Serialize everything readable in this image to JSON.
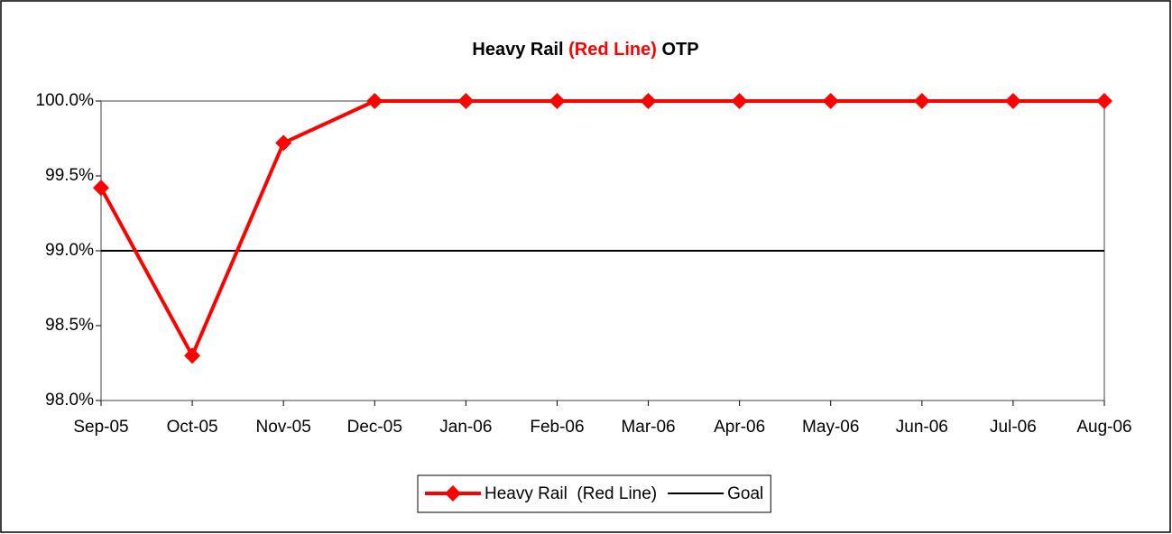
{
  "chart_data": {
    "type": "line",
    "title": [
      "Heavy Rail",
      "(Red Line)",
      "OTP"
    ],
    "title_colors": [
      "#000000",
      "#ff0000",
      "#000000"
    ],
    "categories": [
      "Sep-05",
      "Oct-05",
      "Nov-05",
      "Dec-05",
      "Jan-06",
      "Feb-06",
      "Mar-06",
      "Apr-06",
      "May-06",
      "Jun-06",
      "Jul-06",
      "Aug-06"
    ],
    "series": [
      {
        "name": "Heavy Rail  (Red Line)",
        "color": "#ff0000",
        "marker": "diamond",
        "values": [
          99.42,
          98.3,
          99.72,
          100,
          100,
          100,
          100,
          100,
          100,
          100,
          100,
          100
        ]
      },
      {
        "name": "Goal",
        "color": "#000000",
        "values": [
          99,
          99,
          99,
          99,
          99,
          99,
          99,
          99,
          99,
          99,
          99,
          99
        ]
      }
    ],
    "ylim": [
      98,
      100
    ],
    "yticks": [
      {
        "value": 98,
        "label": "98.0%"
      },
      {
        "value": 98.5,
        "label": "98.5%"
      },
      {
        "value": 99,
        "label": "99.0%"
      },
      {
        "value": 99.5,
        "label": "99.5%"
      },
      {
        "value": 100,
        "label": "100.0%"
      }
    ],
    "legend": "bottom"
  }
}
